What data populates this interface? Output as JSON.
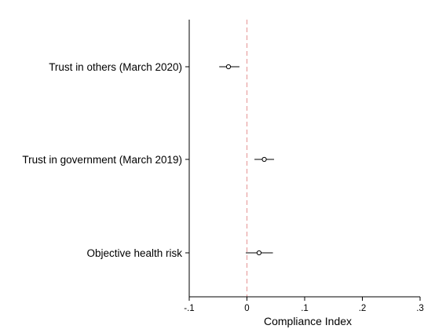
{
  "chart_data": {
    "type": "scatter",
    "subtype": "coefficient-plot",
    "title": "",
    "xlabel": "Compliance Index",
    "ylabel": "",
    "xlim": [
      -0.1,
      0.3
    ],
    "xticks": [
      -0.1,
      0,
      0.1,
      0.2,
      0.3
    ],
    "xtick_labels": [
      "-.1",
      "0",
      ".1",
      ".2",
      ".3"
    ],
    "categories": [
      "Trust in others (March 2020)",
      "Trust in government (March 2019)",
      "Objective health risk"
    ],
    "estimates": [
      -0.032,
      0.03,
      0.021
    ],
    "ci_low": [
      -0.048,
      0.013,
      -0.002
    ],
    "ci_high": [
      -0.013,
      0.047,
      0.045
    ],
    "reference_line": {
      "x": 0,
      "style": "dashed",
      "color": "#e8a0a0"
    },
    "colors": {
      "marker": "#000000",
      "axis": "#000000"
    },
    "grid": false,
    "legend": "none"
  }
}
